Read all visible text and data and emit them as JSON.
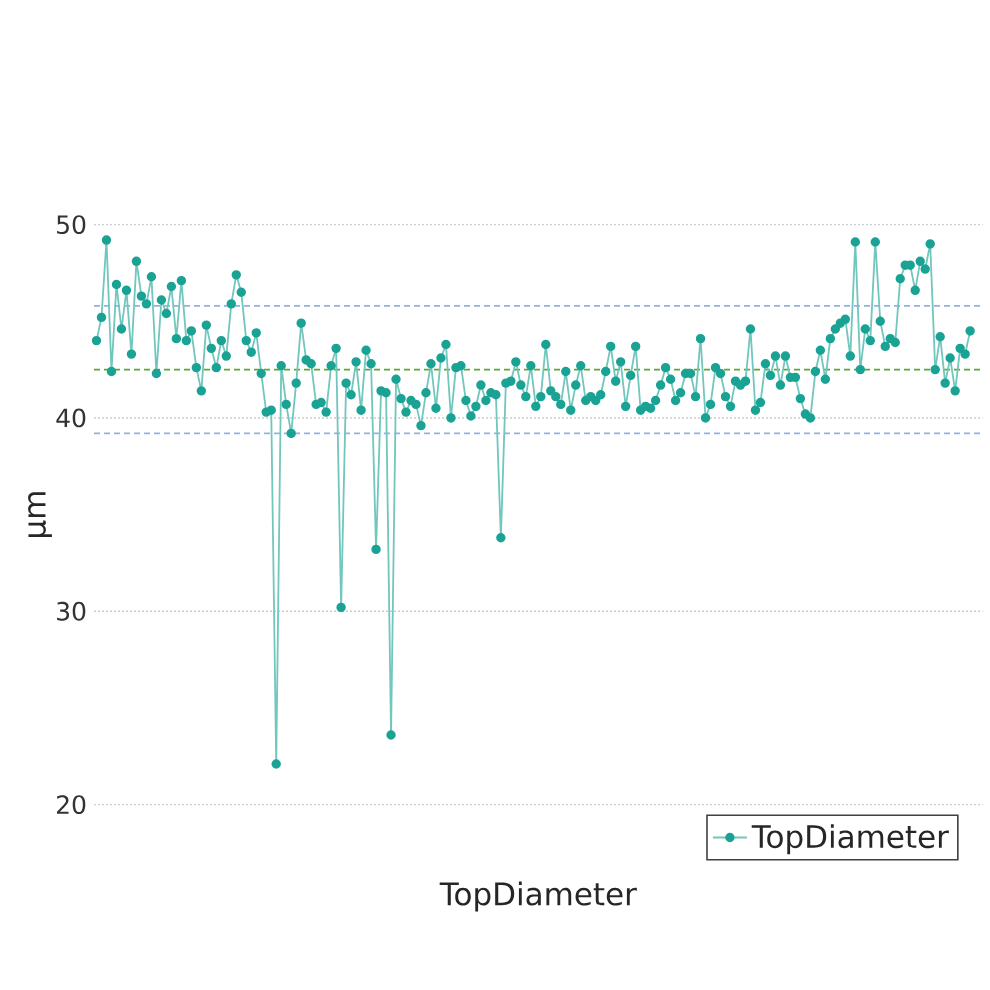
{
  "chart_data": {
    "type": "line",
    "xlabel": "TopDiameter",
    "ylabel": "µm",
    "categories": [
      null,
      null,
      null,
      null,
      null,
      null,
      null,
      null,
      null,
      null,
      null,
      null,
      null,
      null,
      null,
      null,
      null,
      null,
      null,
      null,
      null,
      null,
      null,
      null,
      null,
      null,
      null,
      null,
      null,
      null,
      null,
      null,
      null,
      null,
      null,
      null,
      null,
      null,
      null,
      null,
      null,
      null,
      null,
      null,
      null,
      null,
      null,
      null,
      null,
      null,
      null,
      null,
      null,
      null,
      null,
      null,
      null,
      null,
      null,
      null,
      null,
      null,
      null,
      null,
      null,
      null,
      null,
      null,
      null,
      null,
      null,
      null,
      null,
      null,
      null,
      null,
      null,
      null,
      null,
      null,
      null,
      null,
      null,
      null,
      null,
      null,
      null,
      null,
      null,
      null,
      null,
      null,
      null,
      null,
      null,
      null,
      null,
      null,
      null,
      null,
      null,
      null,
      null,
      null,
      null,
      null,
      null,
      null,
      null,
      null,
      null,
      null,
      null,
      null,
      null,
      null,
      null,
      null,
      null,
      null,
      null,
      null,
      null,
      null,
      null,
      null,
      null,
      null,
      null,
      null,
      null,
      null,
      null,
      null,
      null,
      null,
      null,
      null,
      null,
      null,
      null,
      null,
      null,
      null,
      null,
      null,
      null,
      null,
      null,
      null,
      null,
      null,
      null,
      null,
      null,
      null,
      null,
      null,
      null,
      null,
      null,
      null,
      null,
      null,
      null,
      null,
      null,
      null,
      null,
      null,
      null,
      null,
      null,
      null,
      null,
      null
    ],
    "series": [
      {
        "name": "TopDiameter",
        "color": "#1aa394",
        "values": [
          44.0,
          45.2,
          49.2,
          42.4,
          46.9,
          44.6,
          46.6,
          43.3,
          48.1,
          46.3,
          45.9,
          47.3,
          42.3,
          46.1,
          45.4,
          46.8,
          44.1,
          47.1,
          44.0,
          44.5,
          42.6,
          41.4,
          44.8,
          43.6,
          42.6,
          44.0,
          43.2,
          45.9,
          47.4,
          46.5,
          44.0,
          43.4,
          44.4,
          42.3,
          40.3,
          40.4,
          22.1,
          42.7,
          40.7,
          39.2,
          41.8,
          44.9,
          43.0,
          42.8,
          40.7,
          40.8,
          40.3,
          42.7,
          43.6,
          30.2,
          41.8,
          41.2,
          42.9,
          40.4,
          43.5,
          42.8,
          33.2,
          41.4,
          41.3,
          23.6,
          42.0,
          41.0,
          40.3,
          40.9,
          40.7,
          39.6,
          41.3,
          42.8,
          40.5,
          43.1,
          43.8,
          40.0,
          42.6,
          42.7,
          40.9,
          40.1,
          40.6,
          41.7,
          40.9,
          41.3,
          41.2,
          33.8,
          41.8,
          41.9,
          42.9,
          41.7,
          41.1,
          42.7,
          40.6,
          41.1,
          43.8,
          41.4,
          41.1,
          40.7,
          42.4,
          40.4,
          41.7,
          42.7,
          40.9,
          41.1,
          40.9,
          41.2,
          42.4,
          43.7,
          41.9,
          42.9,
          40.6,
          42.2,
          43.7,
          40.4,
          40.6,
          40.5,
          40.9,
          41.7,
          42.6,
          42.0,
          40.9,
          41.3,
          42.3,
          42.3,
          41.1,
          44.1,
          40.0,
          40.7,
          42.6,
          42.3,
          41.1,
          40.6,
          41.9,
          41.7,
          41.9,
          44.6,
          40.4,
          40.8,
          42.8,
          42.2,
          43.2,
          41.7,
          43.2,
          42.1,
          42.1,
          41.0,
          40.2,
          40.0,
          42.4,
          43.5,
          42.0,
          44.1,
          44.6,
          44.9,
          45.1,
          43.2,
          49.1,
          42.5,
          44.6,
          44.0,
          49.1,
          45.0,
          43.7,
          44.1,
          43.9,
          47.2,
          47.9,
          47.9,
          46.6,
          48.1,
          47.7,
          49.0,
          42.5,
          44.2,
          41.8,
          43.1,
          41.4,
          43.6,
          43.3,
          44.5
        ]
      }
    ],
    "ylim": [
      20,
      50
    ],
    "yticks": [
      20,
      30,
      40,
      50
    ],
    "grid": "y",
    "legend": "bottom right",
    "marker": "circle",
    "line_style": "solid",
    "tick_labels": "y",
    "ref_lines": [
      {
        "axis": "y",
        "value": 45.8,
        "color": "#8fb3e3",
        "line_style": "dashed"
      },
      {
        "axis": "y",
        "value": 42.5,
        "color": "#5aa832",
        "line_style": "dashed"
      },
      {
        "axis": "y",
        "value": 39.2,
        "color": "#8fb3e3",
        "line_style": "dashed"
      }
    ]
  }
}
